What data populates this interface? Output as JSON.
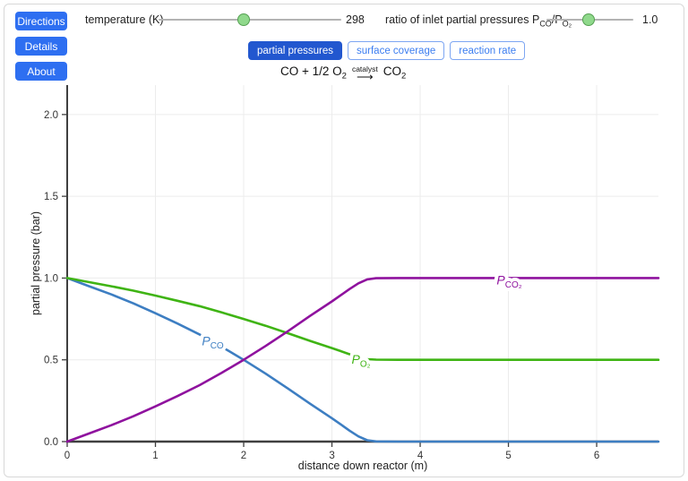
{
  "colors": {
    "nav_button": "#2e6ff1",
    "tab_active_bg": "#2257cf",
    "tab_border": "#7da6f2",
    "tab_text": "#3b7df0",
    "slider_track": "#b3b3b3",
    "slider_thumb_fill": "#90d98c",
    "slider_thumb_border": "#55a052",
    "axis": "#3f3f3f",
    "grid": "#ececec",
    "tick_text": "#333333"
  },
  "nav_buttons": [
    {
      "label": "Directions"
    },
    {
      "label": "Details"
    },
    {
      "label": "About"
    }
  ],
  "sliders": {
    "temperature": {
      "label": "temperature (K)",
      "value": "298",
      "fraction": 0.465
    },
    "ratio": {
      "label_text": "ratio of inlet partial pressures ",
      "sym1": "P",
      "sym1_sub": "CO",
      "sym_mid": "/P",
      "sym2_sub": "O₂",
      "value": "1.0",
      "fraction": 0.485
    }
  },
  "tabs": [
    {
      "label": "partial pressures",
      "active": true
    },
    {
      "label": "surface coverage",
      "active": false
    },
    {
      "label": "reaction rate",
      "active": false
    }
  ],
  "equation": {
    "lhs": "CO + 1/2 O",
    "lhs_sub": "2",
    "catalyst_label": "catalyst",
    "arrow": "⟶",
    "rhs": "CO",
    "rhs_sub": "2"
  },
  "chart_data": {
    "type": "line",
    "title": "",
    "xlabel": "distance down reactor (m)",
    "ylabel": "partial pressure (bar)",
    "xlim": [
      0,
      6.7
    ],
    "ylim": [
      0,
      2.18
    ],
    "grid": true,
    "legend": "inline-curve-labels",
    "xticks": [
      {
        "v": 0,
        "label": "0"
      },
      {
        "v": 1,
        "label": "1"
      },
      {
        "v": 2,
        "label": "2"
      },
      {
        "v": 3,
        "label": "3"
      },
      {
        "v": 4,
        "label": "4"
      },
      {
        "v": 5,
        "label": "5"
      },
      {
        "v": 6,
        "label": "6"
      }
    ],
    "yticks": [
      {
        "v": 0,
        "label": "0.0"
      },
      {
        "v": 0.5,
        "label": "0.5"
      },
      {
        "v": 1,
        "label": "1.0"
      },
      {
        "v": 1.5,
        "label": "1.5"
      },
      {
        "v": 2,
        "label": "2.0"
      }
    ],
    "x": [
      0,
      0.25,
      0.5,
      0.75,
      1,
      1.25,
      1.5,
      1.75,
      2,
      2.25,
      2.5,
      2.75,
      3,
      3.1,
      3.2,
      3.3,
      3.4,
      3.5,
      3.75,
      4,
      4.5,
      5,
      5.5,
      6,
      6.7
    ],
    "series": [
      {
        "name": "P_CO",
        "color": "#3d7ec2",
        "label": {
          "main": "P",
          "sub": "CO"
        },
        "label_pos": {
          "x": 1.65,
          "y": 0.615
        },
        "values": [
          1.0,
          0.95,
          0.9,
          0.845,
          0.785,
          0.722,
          0.655,
          0.58,
          0.5,
          0.415,
          0.325,
          0.232,
          0.143,
          0.105,
          0.067,
          0.032,
          0.008,
          0.001,
          0,
          0,
          0,
          0,
          0,
          0,
          0
        ]
      },
      {
        "name": "P_O2",
        "color": "#3fb414",
        "label": {
          "main": "P",
          "sub": "O₂"
        },
        "label_pos": {
          "x": 3.33,
          "y": 0.505
        },
        "values": [
          1.0,
          0.975,
          0.95,
          0.923,
          0.893,
          0.861,
          0.828,
          0.79,
          0.75,
          0.708,
          0.663,
          0.616,
          0.572,
          0.553,
          0.534,
          0.516,
          0.504,
          0.501,
          0.5,
          0.5,
          0.5,
          0.5,
          0.5,
          0.5,
          0.5
        ]
      },
      {
        "name": "P_CO2",
        "color": "#8f129e",
        "label": {
          "main": "P",
          "sub": "CO₂"
        },
        "label_pos": {
          "x": 5.01,
          "y": 0.988
        },
        "values": [
          0,
          0.05,
          0.1,
          0.155,
          0.215,
          0.278,
          0.345,
          0.42,
          0.5,
          0.585,
          0.675,
          0.768,
          0.857,
          0.895,
          0.933,
          0.968,
          0.992,
          0.999,
          1.0,
          1.0,
          1.0,
          1.0,
          1.0,
          1.0,
          1.0
        ]
      }
    ]
  }
}
